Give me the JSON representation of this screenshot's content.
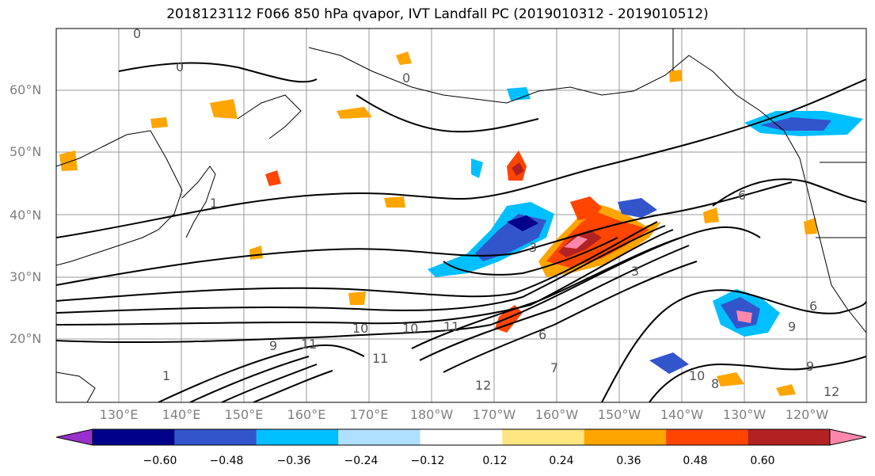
{
  "title": "2018123112 F066 850 hPa qvapor, IVT Landfall PC (2019010312 - 2019010512)",
  "lat_labels": [
    "60°N",
    "50°N",
    "40°N",
    "30°N",
    "20°N"
  ],
  "lon_labels": [
    "130°E",
    "140°E",
    "150°E",
    "160°E",
    "170°E",
    "180°W",
    "170°W",
    "160°W",
    "150°W",
    "140°W",
    "130°W",
    "120°W"
  ],
  "colorbar": {
    "ticks": [
      "−0.60",
      "−0.48",
      "−0.36",
      "−0.24",
      "−0.12",
      "0.12",
      "0.24",
      "0.36",
      "0.48",
      "0.60"
    ],
    "colors": [
      "#9932CC",
      "#00008B",
      "#3355CC",
      "#00BFFF",
      "#B0E0FF",
      "#FFFFFF",
      "#FFE680",
      "#FFA500",
      "#FF4500",
      "#B22222",
      "#FF88AA"
    ]
  },
  "contour_labels": [
    {
      "text": "0"
    },
    {
      "text": "0"
    },
    {
      "text": "0"
    },
    {
      "text": "1"
    },
    {
      "text": "1"
    },
    {
      "text": "3"
    },
    {
      "text": "3"
    },
    {
      "text": "6"
    },
    {
      "text": "6"
    },
    {
      "text": "9"
    },
    {
      "text": "9"
    },
    {
      "text": "9"
    },
    {
      "text": "10"
    },
    {
      "text": "10"
    },
    {
      "text": "11"
    },
    {
      "text": "11"
    },
    {
      "text": "11"
    },
    {
      "text": "12"
    },
    {
      "text": "12"
    },
    {
      "text": "10"
    },
    {
      "text": "8"
    },
    {
      "text": "7"
    },
    {
      "text": "6"
    }
  ]
}
